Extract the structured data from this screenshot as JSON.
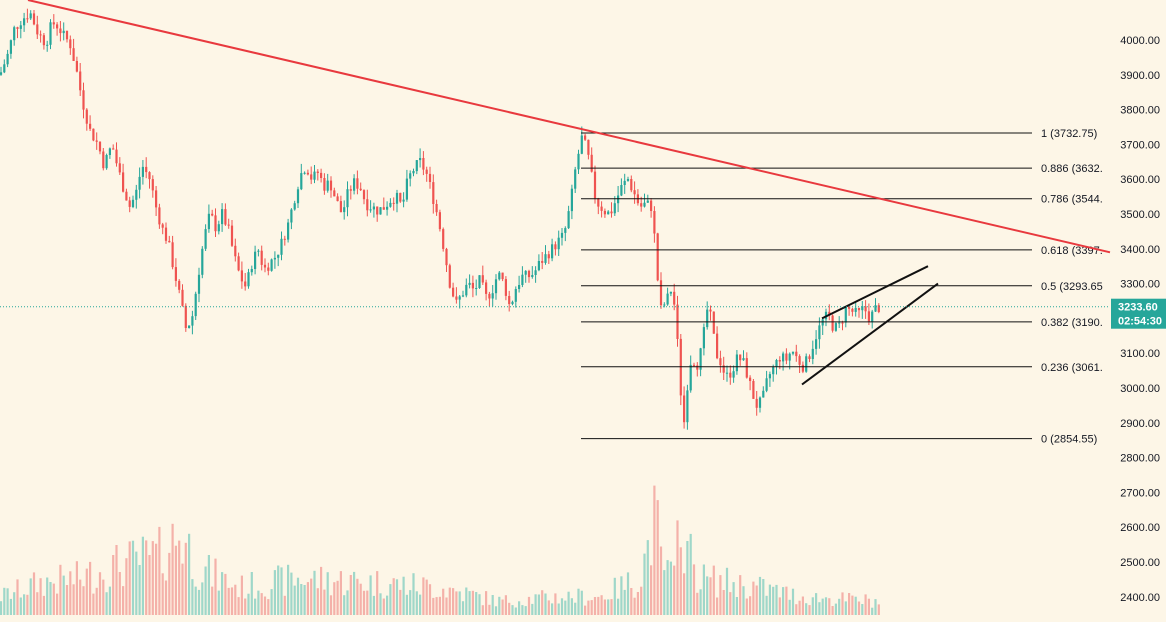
{
  "chart_data": {
    "type": "candlestick",
    "y_axis": {
      "position": "right",
      "range": [
        2360,
        4115
      ],
      "tick_labels": [
        "4000.00",
        "3900.00",
        "3800.00",
        "3700.00",
        "3600.00",
        "3500.00",
        "3400.00",
        "3300.00",
        "3200.00",
        "3100.00",
        "3000.00",
        "2900.00",
        "2800.00",
        "2700.00",
        "2600.00",
        "2500.00",
        "2400.00"
      ],
      "tick_values": [
        4000,
        3900,
        3800,
        3700,
        3600,
        3500,
        3400,
        3300,
        3200,
        3100,
        3000,
        2900,
        2800,
        2700,
        2600,
        2500,
        2400
      ]
    },
    "price_series_anchors": [
      [
        0,
        3900
      ],
      [
        8,
        3960
      ],
      [
        14,
        4030
      ],
      [
        22,
        4060
      ],
      [
        30,
        4080
      ],
      [
        38,
        4020
      ],
      [
        46,
        3990
      ],
      [
        52,
        4050
      ],
      [
        58,
        4040
      ],
      [
        64,
        4010
      ],
      [
        70,
        3990
      ],
      [
        76,
        3920
      ],
      [
        82,
        3830
      ],
      [
        90,
        3740
      ],
      [
        98,
        3700
      ],
      [
        104,
        3640
      ],
      [
        112,
        3700
      ],
      [
        118,
        3630
      ],
      [
        124,
        3570
      ],
      [
        130,
        3520
      ],
      [
        136,
        3560
      ],
      [
        142,
        3640
      ],
      [
        150,
        3600
      ],
      [
        156,
        3520
      ],
      [
        162,
        3460
      ],
      [
        168,
        3420
      ],
      [
        174,
        3340
      ],
      [
        180,
        3260
      ],
      [
        186,
        3170
      ],
      [
        192,
        3200
      ],
      [
        198,
        3320
      ],
      [
        204,
        3430
      ],
      [
        210,
        3500
      ],
      [
        216,
        3460
      ],
      [
        222,
        3500
      ],
      [
        228,
        3460
      ],
      [
        234,
        3380
      ],
      [
        240,
        3320
      ],
      [
        246,
        3290
      ],
      [
        252,
        3360
      ],
      [
        258,
        3400
      ],
      [
        264,
        3340
      ],
      [
        270,
        3360
      ],
      [
        276,
        3380
      ],
      [
        282,
        3420
      ],
      [
        288,
        3470
      ],
      [
        294,
        3540
      ],
      [
        300,
        3610
      ],
      [
        306,
        3640
      ],
      [
        312,
        3600
      ],
      [
        318,
        3620
      ],
      [
        324,
        3580
      ],
      [
        330,
        3590
      ],
      [
        336,
        3540
      ],
      [
        342,
        3500
      ],
      [
        348,
        3560
      ],
      [
        354,
        3590
      ],
      [
        360,
        3580
      ],
      [
        366,
        3530
      ],
      [
        372,
        3520
      ],
      [
        378,
        3510
      ],
      [
        384,
        3520
      ],
      [
        390,
        3540
      ],
      [
        396,
        3550
      ],
      [
        402,
        3520
      ],
      [
        408,
        3600
      ],
      [
        414,
        3630
      ],
      [
        420,
        3650
      ],
      [
        426,
        3620
      ],
      [
        432,
        3560
      ],
      [
        438,
        3490
      ],
      [
        444,
        3400
      ],
      [
        450,
        3300
      ],
      [
        456,
        3240
      ],
      [
        462,
        3270
      ],
      [
        468,
        3300
      ],
      [
        474,
        3280
      ],
      [
        480,
        3310
      ],
      [
        486,
        3260
      ],
      [
        492,
        3280
      ],
      [
        498,
        3330
      ],
      [
        504,
        3300
      ],
      [
        510,
        3230
      ],
      [
        516,
        3290
      ],
      [
        522,
        3320
      ],
      [
        528,
        3320
      ],
      [
        534,
        3330
      ],
      [
        540,
        3360
      ],
      [
        546,
        3380
      ],
      [
        552,
        3400
      ],
      [
        558,
        3420
      ],
      [
        564,
        3440
      ],
      [
        570,
        3520
      ],
      [
        576,
        3640
      ],
      [
        582,
        3720
      ],
      [
        586,
        3690
      ],
      [
        590,
        3640
      ],
      [
        594,
        3560
      ],
      [
        598,
        3530
      ],
      [
        604,
        3510
      ],
      [
        610,
        3500
      ],
      [
        616,
        3540
      ],
      [
        622,
        3580
      ],
      [
        628,
        3600
      ],
      [
        634,
        3560
      ],
      [
        640,
        3520
      ],
      [
        646,
        3530
      ],
      [
        652,
        3520
      ],
      [
        656,
        3380
      ],
      [
        660,
        3220
      ],
      [
        664,
        3240
      ],
      [
        668,
        3260
      ],
      [
        672,
        3290
      ],
      [
        676,
        3200
      ],
      [
        680,
        3010
      ],
      [
        684,
        2900
      ],
      [
        688,
        3030
      ],
      [
        692,
        3100
      ],
      [
        696,
        3060
      ],
      [
        700,
        3090
      ],
      [
        704,
        3160
      ],
      [
        708,
        3240
      ],
      [
        712,
        3180
      ],
      [
        716,
        3100
      ],
      [
        720,
        3080
      ],
      [
        726,
        3030
      ],
      [
        732,
        3050
      ],
      [
        738,
        3090
      ],
      [
        744,
        3070
      ],
      [
        750,
        3010
      ],
      [
        756,
        2950
      ],
      [
        762,
        2960
      ],
      [
        768,
        3030
      ],
      [
        774,
        3060
      ],
      [
        780,
        3090
      ],
      [
        786,
        3080
      ],
      [
        792,
        3110
      ],
      [
        798,
        3080
      ],
      [
        804,
        3060
      ],
      [
        810,
        3100
      ],
      [
        816,
        3150
      ],
      [
        822,
        3190
      ],
      [
        828,
        3210
      ],
      [
        834,
        3170
      ],
      [
        840,
        3180
      ],
      [
        846,
        3230
      ],
      [
        852,
        3220
      ],
      [
        858,
        3210
      ],
      [
        864,
        3230
      ],
      [
        870,
        3200
      ],
      [
        876,
        3230
      ],
      [
        882,
        3233.6
      ]
    ],
    "volume": {
      "range": [
        0,
        160
      ],
      "anchors": [
        [
          0,
          20
        ],
        [
          40,
          35
        ],
        [
          80,
          40
        ],
        [
          120,
          55
        ],
        [
          160,
          65
        ],
        [
          180,
          90
        ],
        [
          200,
          50
        ],
        [
          240,
          30
        ],
        [
          300,
          40
        ],
        [
          380,
          35
        ],
        [
          440,
          30
        ],
        [
          500,
          15
        ],
        [
          560,
          20
        ],
        [
          600,
          20
        ],
        [
          640,
          40
        ],
        [
          656,
          110
        ],
        [
          660,
          60
        ],
        [
          676,
          35
        ],
        [
          680,
          160
        ],
        [
          684,
          80
        ],
        [
          700,
          40
        ],
        [
          760,
          30
        ],
        [
          800,
          20
        ],
        [
          880,
          15
        ]
      ]
    },
    "fibonacci": {
      "levels": [
        {
          "ratio": 1,
          "price": 3732.75,
          "label": "1 (3732.75)"
        },
        {
          "ratio": 0.886,
          "price": 3632,
          "label": "0.886 (3632."
        },
        {
          "ratio": 0.786,
          "price": 3544,
          "label": "0.786 (3544."
        },
        {
          "ratio": 0.618,
          "price": 3397,
          "label": "0.618 (3397."
        },
        {
          "ratio": 0.5,
          "price": 3293.65,
          "label": "0.5 (3293.65"
        },
        {
          "ratio": 0.382,
          "price": 3190,
          "label": "0.382 (3190."
        },
        {
          "ratio": 0.236,
          "price": 3061,
          "label": "0.236 (3061."
        },
        {
          "ratio": 0,
          "price": 2854.55,
          "label": "0 (2854.55)"
        }
      ]
    },
    "trendline": {
      "points": [
        [
          28,
          4115
        ],
        [
          1110,
          3390
        ]
      ],
      "color": "#e8393e"
    },
    "wedge": {
      "upper": [
        [
          822,
          3200
        ],
        [
          928,
          3350
        ]
      ],
      "lower": [
        [
          802,
          3010
        ],
        [
          938,
          3300
        ]
      ],
      "color": "#111111"
    },
    "current_price": {
      "value": 3233.6,
      "label": "3233.60",
      "countdown": "02:54:30",
      "color": "#26a69a"
    },
    "colors": {
      "background": "#fdf6e7",
      "up": "#26a69a",
      "down": "#ef5350",
      "up_volume": "#9fd7c9",
      "down_volume": "#f4b1a9",
      "axis_text": "#131722",
      "fib_line": "#111111"
    }
  }
}
